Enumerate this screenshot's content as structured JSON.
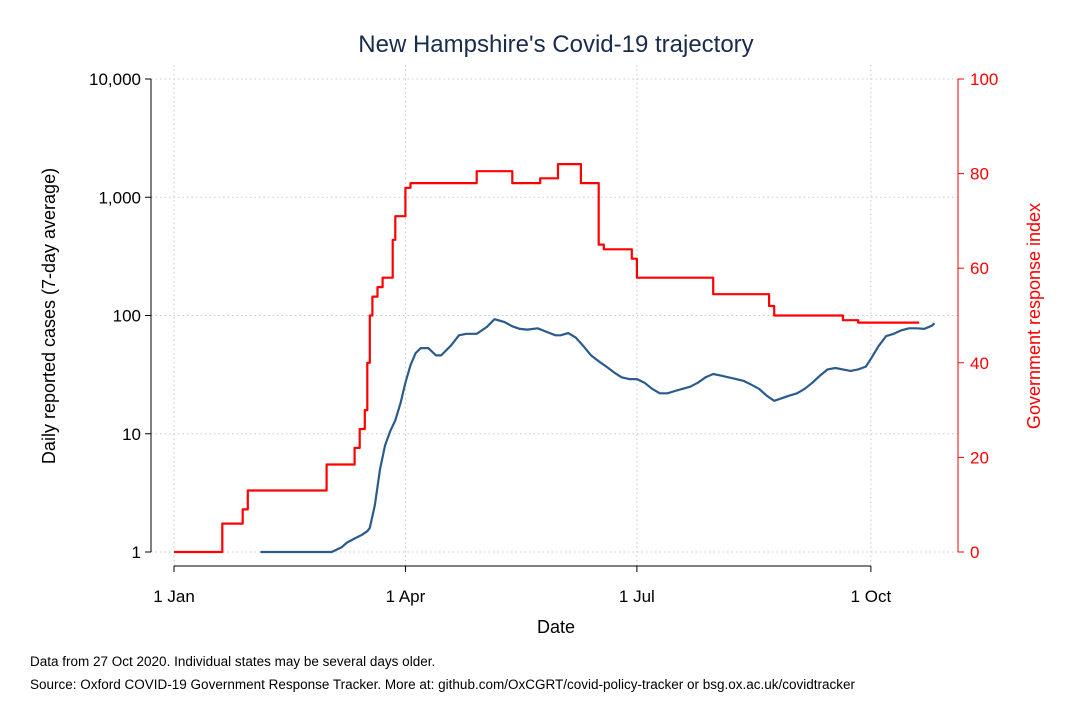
{
  "chart_data": {
    "type": "line",
    "title": "New Hampshire's Covid-19 trajectory",
    "xlabel": "Date",
    "ylabel_left": "Daily reported cases (7-day average)",
    "ylabel_right": "Government response index",
    "x_ticks": [
      {
        "date": "2020-01-01",
        "label": "1 Jan"
      },
      {
        "date": "2020-04-01",
        "label": "1 Apr"
      },
      {
        "date": "2020-07-01",
        "label": "1 Jul"
      },
      {
        "date": "2020-10-01",
        "label": "1 Oct"
      }
    ],
    "xlim": [
      "2020-01-01",
      "2020-10-27"
    ],
    "y_left": {
      "scale": "log",
      "ylim": [
        1,
        10000
      ],
      "ticks": [
        {
          "value": 1,
          "label": "1"
        },
        {
          "value": 10,
          "label": "10"
        },
        {
          "value": 100,
          "label": "100"
        },
        {
          "value": 1000,
          "label": "1,000"
        },
        {
          "value": 10000,
          "label": "10,000"
        }
      ]
    },
    "y_right": {
      "scale": "linear",
      "ylim": [
        0,
        100
      ],
      "ticks": [
        {
          "value": 0,
          "label": "0"
        },
        {
          "value": 20,
          "label": "20"
        },
        {
          "value": 40,
          "label": "40"
        },
        {
          "value": 60,
          "label": "60"
        },
        {
          "value": 80,
          "label": "80"
        },
        {
          "value": 100,
          "label": "100"
        }
      ]
    },
    "grid": true,
    "series": [
      {
        "axis": "left",
        "color": "#2a5b8c",
        "points": [
          [
            "2020-02-04",
            1
          ],
          [
            "2020-03-03",
            1
          ],
          [
            "2020-03-07",
            1.1
          ],
          [
            "2020-03-09",
            1.2
          ],
          [
            "2020-03-12",
            1.3
          ],
          [
            "2020-03-15",
            1.4
          ],
          [
            "2020-03-17",
            1.5
          ],
          [
            "2020-03-18",
            1.6
          ],
          [
            "2020-03-20",
            2.5
          ],
          [
            "2020-03-22",
            5
          ],
          [
            "2020-03-24",
            8
          ],
          [
            "2020-03-26",
            10.5
          ],
          [
            "2020-03-28",
            13
          ],
          [
            "2020-03-30",
            18
          ],
          [
            "2020-04-01",
            27
          ],
          [
            "2020-04-03",
            38
          ],
          [
            "2020-04-05",
            48
          ],
          [
            "2020-04-07",
            53
          ],
          [
            "2020-04-10",
            53
          ],
          [
            "2020-04-13",
            46
          ],
          [
            "2020-04-15",
            46
          ],
          [
            "2020-04-19",
            56
          ],
          [
            "2020-04-22",
            68
          ],
          [
            "2020-04-25",
            70
          ],
          [
            "2020-04-29",
            70
          ],
          [
            "2020-05-03",
            80
          ],
          [
            "2020-05-06",
            93
          ],
          [
            "2020-05-10",
            88
          ],
          [
            "2020-05-13",
            81
          ],
          [
            "2020-05-16",
            77
          ],
          [
            "2020-05-19",
            76
          ],
          [
            "2020-05-23",
            78
          ],
          [
            "2020-05-27",
            72
          ],
          [
            "2020-05-30",
            68
          ],
          [
            "2020-06-01",
            68
          ],
          [
            "2020-06-04",
            71
          ],
          [
            "2020-06-07",
            65
          ],
          [
            "2020-06-10",
            55
          ],
          [
            "2020-06-13",
            46
          ],
          [
            "2020-06-16",
            41
          ],
          [
            "2020-06-19",
            37
          ],
          [
            "2020-06-22",
            33
          ],
          [
            "2020-06-25",
            30
          ],
          [
            "2020-06-28",
            29
          ],
          [
            "2020-07-01",
            29
          ],
          [
            "2020-07-04",
            27
          ],
          [
            "2020-07-07",
            24
          ],
          [
            "2020-07-10",
            22
          ],
          [
            "2020-07-13",
            22
          ],
          [
            "2020-07-16",
            23
          ],
          [
            "2020-07-19",
            24
          ],
          [
            "2020-07-22",
            25
          ],
          [
            "2020-07-25",
            27
          ],
          [
            "2020-07-28",
            30
          ],
          [
            "2020-07-31",
            32
          ],
          [
            "2020-08-03",
            31
          ],
          [
            "2020-08-06",
            30
          ],
          [
            "2020-08-09",
            29
          ],
          [
            "2020-08-12",
            28
          ],
          [
            "2020-08-15",
            26
          ],
          [
            "2020-08-18",
            24
          ],
          [
            "2020-08-21",
            21
          ],
          [
            "2020-08-24",
            19
          ],
          [
            "2020-08-27",
            20
          ],
          [
            "2020-08-30",
            21
          ],
          [
            "2020-09-02",
            22
          ],
          [
            "2020-09-05",
            24
          ],
          [
            "2020-09-08",
            27
          ],
          [
            "2020-09-11",
            31
          ],
          [
            "2020-09-14",
            35
          ],
          [
            "2020-09-17",
            36
          ],
          [
            "2020-09-20",
            35
          ],
          [
            "2020-09-23",
            34
          ],
          [
            "2020-09-26",
            35
          ],
          [
            "2020-09-29",
            37
          ],
          [
            "2020-10-01",
            43
          ],
          [
            "2020-10-04",
            55
          ],
          [
            "2020-10-07",
            67
          ],
          [
            "2020-10-10",
            70
          ],
          [
            "2020-10-13",
            75
          ],
          [
            "2020-10-16",
            78
          ],
          [
            "2020-10-19",
            78
          ],
          [
            "2020-10-22",
            77
          ],
          [
            "2020-10-25",
            82
          ],
          [
            "2020-10-26",
            86
          ]
        ]
      },
      {
        "axis": "right",
        "color": "#ff0000",
        "step": true,
        "points": [
          [
            "2020-01-01",
            0
          ],
          [
            "2020-01-20",
            6
          ],
          [
            "2020-01-28",
            9
          ],
          [
            "2020-01-30",
            13
          ],
          [
            "2020-03-01",
            18.5
          ],
          [
            "2020-03-12",
            22
          ],
          [
            "2020-03-14",
            26
          ],
          [
            "2020-03-16",
            30
          ],
          [
            "2020-03-17",
            40
          ],
          [
            "2020-03-18",
            50
          ],
          [
            "2020-03-19",
            54
          ],
          [
            "2020-03-21",
            56
          ],
          [
            "2020-03-23",
            58
          ],
          [
            "2020-03-27",
            66
          ],
          [
            "2020-03-28",
            71
          ],
          [
            "2020-04-01",
            77
          ],
          [
            "2020-04-03",
            78
          ],
          [
            "2020-04-29",
            80.5
          ],
          [
            "2020-05-13",
            78
          ],
          [
            "2020-05-24",
            79
          ],
          [
            "2020-05-31",
            82
          ],
          [
            "2020-06-09",
            78
          ],
          [
            "2020-06-16",
            65
          ],
          [
            "2020-06-18",
            64
          ],
          [
            "2020-06-29",
            62
          ],
          [
            "2020-07-01",
            58
          ],
          [
            "2020-07-31",
            54.5
          ],
          [
            "2020-08-22",
            52
          ],
          [
            "2020-08-24",
            50
          ],
          [
            "2020-09-20",
            49
          ],
          [
            "2020-09-26",
            48.5
          ],
          [
            "2020-10-20",
            48.5
          ]
        ]
      }
    ]
  },
  "footnote": {
    "line1": "Data from 27 Oct 2020. Individual states may be several days older.",
    "line2": "Source: Oxford COVID-19 Government Response Tracker. More at: github.com/OxCGRT/covid-policy-tracker or bsg.ox.ac.uk/covidtracker"
  }
}
